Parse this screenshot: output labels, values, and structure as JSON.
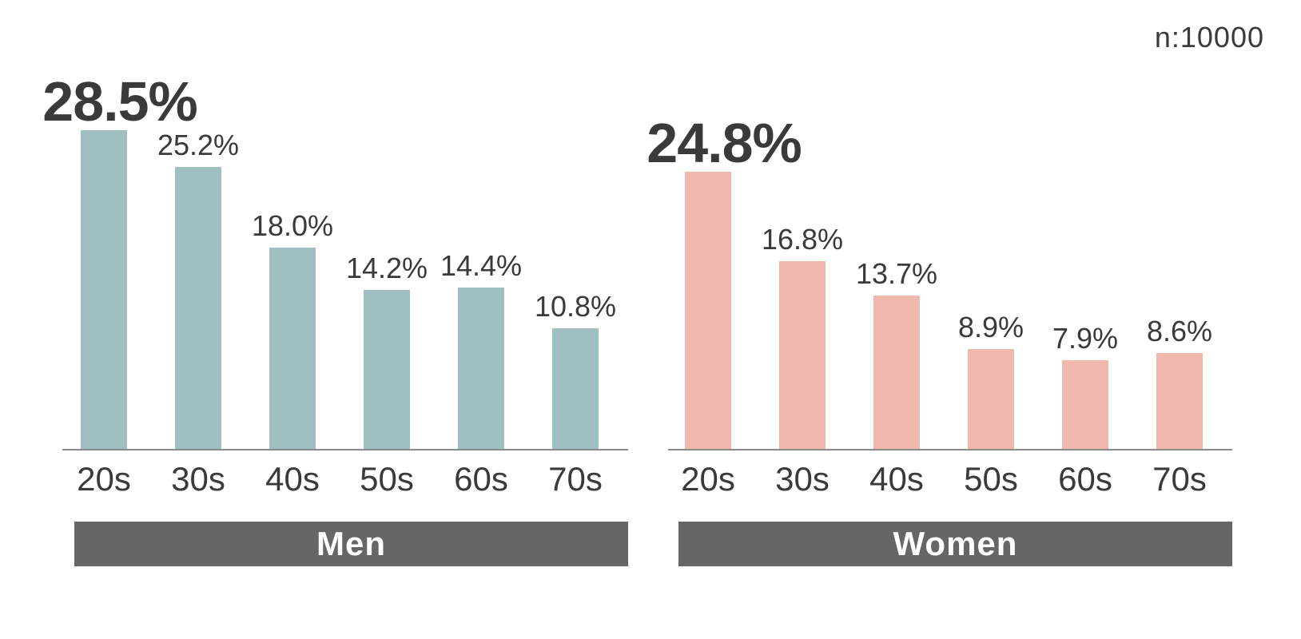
{
  "header": {
    "sample_size_label": "n:10000"
  },
  "colors": {
    "men_bar": "#a0bfc0",
    "women_bar": "#f0b8ac",
    "band_background": "#666666",
    "band_text": "#ffffff",
    "text": "#3a3a3a",
    "axis_line": "#8a8a8a",
    "background": "#ffffff"
  },
  "chart_data": [
    {
      "type": "bar",
      "group_label": "Men",
      "categories": [
        "20s",
        "30s",
        "40s",
        "50s",
        "60s",
        "70s"
      ],
      "values": [
        28.5,
        25.2,
        18.0,
        14.2,
        14.4,
        10.8
      ],
      "value_labels": [
        "28.5%",
        "25.2%",
        "18.0%",
        "14.2%",
        "14.4%",
        "10.8%"
      ],
      "emphasized_index": 0,
      "bar_color": "#a0bfc0",
      "ylim": [
        0,
        30
      ],
      "grid": false,
      "legend": false
    },
    {
      "type": "bar",
      "group_label": "Women",
      "categories": [
        "20s",
        "30s",
        "40s",
        "50s",
        "60s",
        "70s"
      ],
      "values": [
        24.8,
        16.8,
        13.7,
        8.9,
        7.9,
        8.6
      ],
      "value_labels": [
        "24.8%",
        "16.8%",
        "13.7%",
        "8.9%",
        "7.9%",
        "8.6%"
      ],
      "emphasized_index": 0,
      "bar_color": "#f0b8ac",
      "ylim": [
        0,
        30
      ],
      "grid": false,
      "legend": false
    }
  ]
}
